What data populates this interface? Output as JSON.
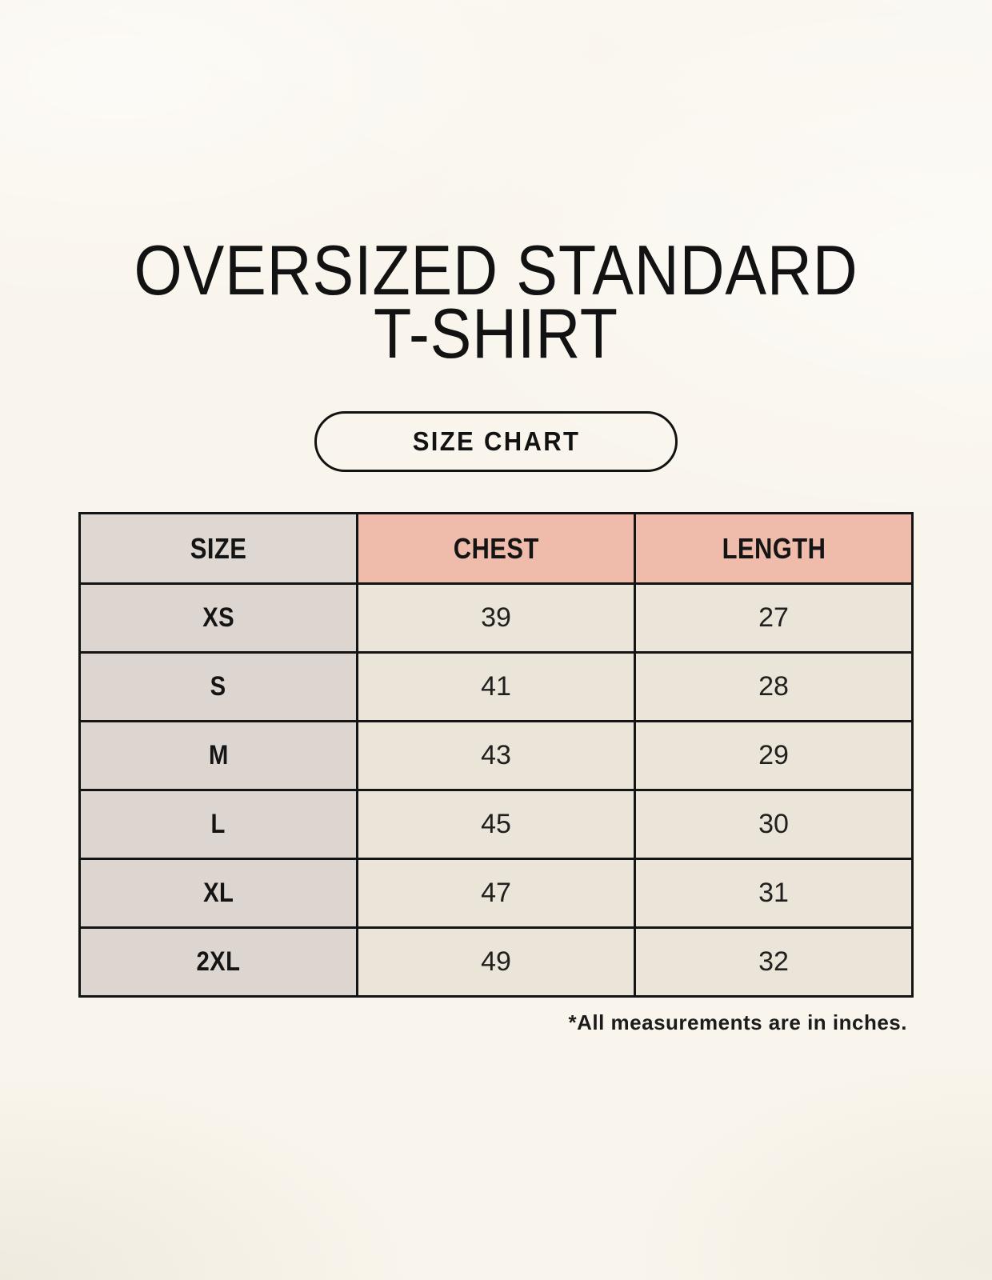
{
  "page": {
    "title_line1": "OVERSIZED STANDARD",
    "title_line2": "T-SHIRT",
    "badge_label": "SIZE CHART",
    "footnote": "*All measurements are in inches."
  },
  "colors": {
    "background": "#f9f5ec",
    "size_column_bg": "#ddd6d0",
    "header_accent_bg": "#efbcab",
    "data_cell_bg": "#ebe4d9",
    "border": "#141414",
    "text": "#141414"
  },
  "chart_data": {
    "type": "table",
    "title": "OVERSIZED STANDARD T-SHIRT",
    "subtitle": "SIZE CHART",
    "columns": [
      "SIZE",
      "CHEST",
      "LENGTH"
    ],
    "rows": [
      [
        "XS",
        "39",
        "27"
      ],
      [
        "S",
        "41",
        "28"
      ],
      [
        "M",
        "43",
        "29"
      ],
      [
        "L",
        "45",
        "30"
      ],
      [
        "XL",
        "47",
        "31"
      ],
      [
        "2XL",
        "49",
        "32"
      ]
    ],
    "units_note": "*All measurements are in inches."
  }
}
